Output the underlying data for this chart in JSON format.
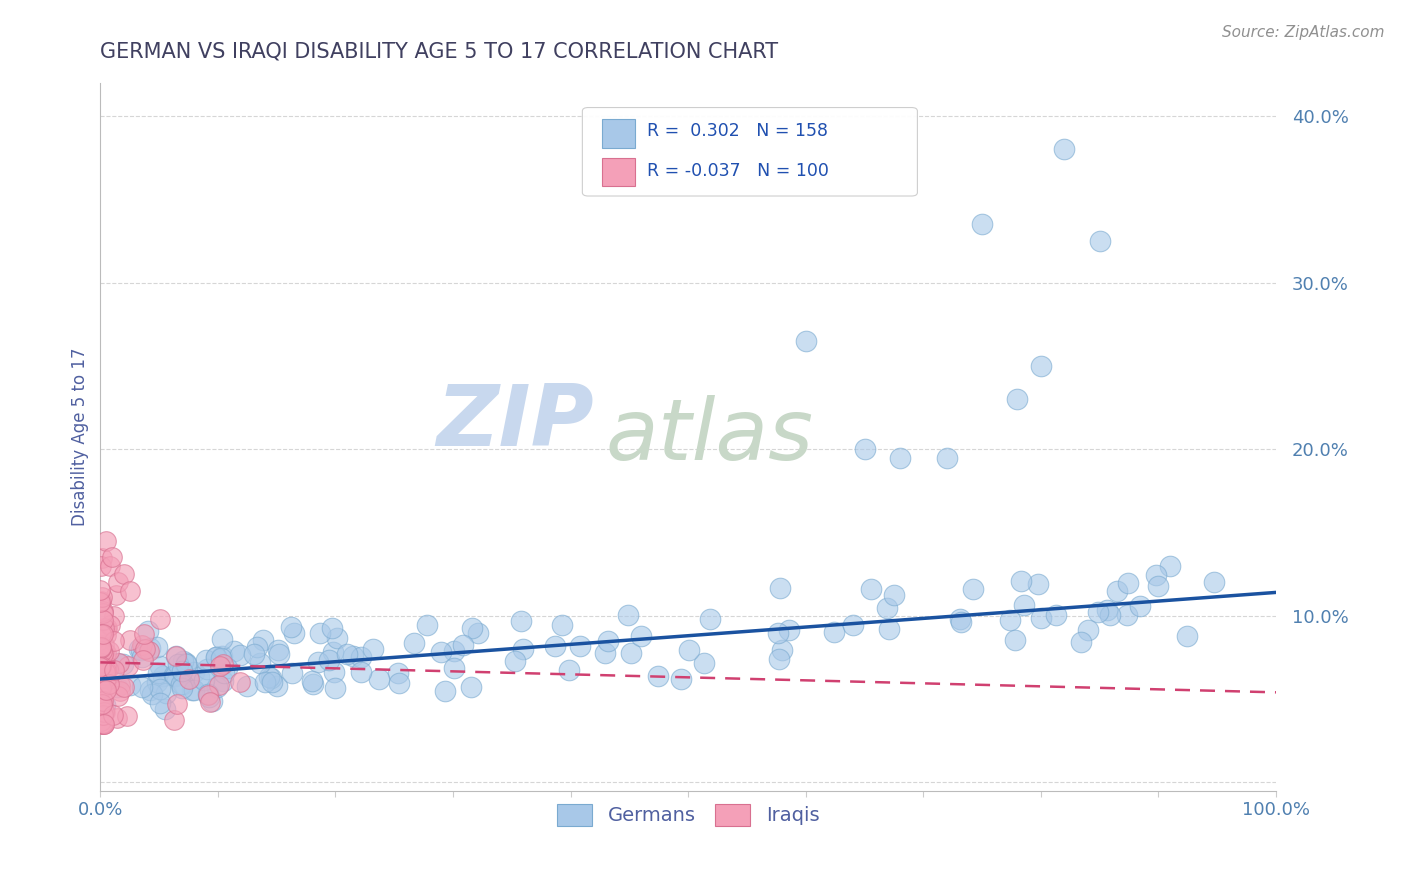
{
  "title": "GERMAN VS IRAQI DISABILITY AGE 5 TO 17 CORRELATION CHART",
  "source_text": "Source: ZipAtlas.com",
  "ylabel": "Disability Age 5 to 17",
  "xlim": [
    0,
    1.0
  ],
  "ylim": [
    -0.005,
    0.42
  ],
  "german_R": 0.302,
  "german_N": 158,
  "iraqi_R": -0.037,
  "iraqi_N": 100,
  "german_color": "#a8c8e8",
  "german_edge_color": "#7aaad0",
  "iraqi_color": "#f4a0b8",
  "iraqi_edge_color": "#d87090",
  "german_line_color": "#1a52a0",
  "iraqi_line_color": "#d04070",
  "title_color": "#404060",
  "axis_label_color": "#5060a0",
  "tick_color": "#5080b0",
  "legend_R_color": "#2050b0",
  "watermark_color_zip": "#c8d8ee",
  "watermark_color_atlas": "#c8d8c8",
  "background_color": "#ffffff",
  "grid_color": "#cccccc",
  "german_line_intercept": 0.062,
  "german_line_slope": 0.052,
  "iraqi_line_intercept": 0.072,
  "iraqi_line_slope": -0.018
}
